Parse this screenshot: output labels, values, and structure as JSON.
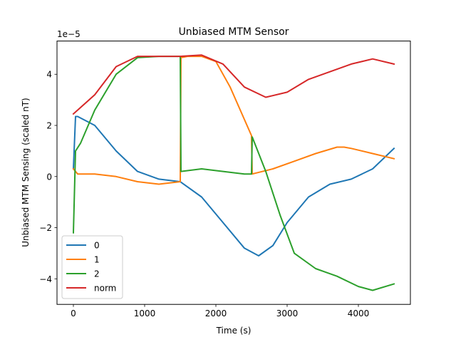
{
  "chart_data": {
    "type": "line",
    "title": "Unbiased MTM Sensor",
    "xlabel": "Time (s)",
    "ylabel": "Unbiased MTM Sensing (scaled nT)",
    "y_offset_text": "1e−5",
    "xlim": [
      -230,
      4730
    ],
    "ylim": [
      -5.0,
      5.3
    ],
    "x_ticks": [
      0,
      1000,
      2000,
      3000,
      4000
    ],
    "x_tick_labels": [
      "0",
      "1000",
      "2000",
      "3000",
      "4000"
    ],
    "y_ticks": [
      -4,
      -2,
      0,
      2,
      4
    ],
    "y_tick_labels": [
      "−4",
      "−2",
      "0",
      "2",
      "4"
    ],
    "grid": false,
    "legend": "lower-left",
    "series": [
      {
        "name": "0",
        "color": "#1f77b4",
        "x": [
          0,
          30,
          60,
          300,
          600,
          900,
          1200,
          1500,
          1800,
          2100,
          2400,
          2600,
          2800,
          3000,
          3300,
          3600,
          3900,
          4200,
          4500
        ],
        "y": [
          0.3,
          2.35,
          2.35,
          2.0,
          1.0,
          0.2,
          -0.1,
          -0.2,
          -0.8,
          -1.8,
          -2.8,
          -3.1,
          -2.7,
          -1.8,
          -0.8,
          -0.3,
          -0.1,
          0.3,
          1.1
        ]
      },
      {
        "name": "1",
        "color": "#ff7f0e",
        "x": [
          0,
          30,
          60,
          300,
          600,
          900,
          1200,
          1500,
          1510,
          1600,
          1800,
          2000,
          2200,
          2500,
          2510,
          2800,
          3100,
          3400,
          3700,
          3800,
          3900,
          4200,
          4500
        ],
        "y": [
          0.3,
          0.2,
          0.1,
          0.1,
          0.0,
          -0.2,
          -0.3,
          -0.2,
          4.65,
          4.7,
          4.7,
          4.5,
          3.5,
          1.6,
          0.1,
          0.3,
          0.6,
          0.9,
          1.15,
          1.15,
          1.1,
          0.9,
          0.7
        ]
      },
      {
        "name": "2",
        "color": "#2ca02c",
        "x": [
          0,
          30,
          100,
          300,
          600,
          900,
          1200,
          1500,
          1510,
          1800,
          2100,
          2400,
          2500,
          2510,
          2700,
          2900,
          3100,
          3400,
          3700,
          4000,
          4200,
          4500
        ],
        "y": [
          -2.2,
          1.0,
          1.3,
          2.6,
          4.0,
          4.65,
          4.7,
          4.7,
          0.2,
          0.3,
          0.2,
          0.1,
          0.1,
          1.55,
          0.2,
          -1.5,
          -3.0,
          -3.6,
          -3.9,
          -4.3,
          -4.45,
          -4.2
        ]
      },
      {
        "name": "norm",
        "color": "#d62728",
        "x": [
          0,
          300,
          600,
          900,
          1200,
          1500,
          1800,
          2100,
          2400,
          2700,
          3000,
          3300,
          3600,
          3900,
          4200,
          4500
        ],
        "y": [
          2.45,
          3.2,
          4.3,
          4.7,
          4.7,
          4.7,
          4.75,
          4.4,
          3.5,
          3.1,
          3.3,
          3.8,
          4.1,
          4.4,
          4.6,
          4.4
        ]
      }
    ]
  }
}
